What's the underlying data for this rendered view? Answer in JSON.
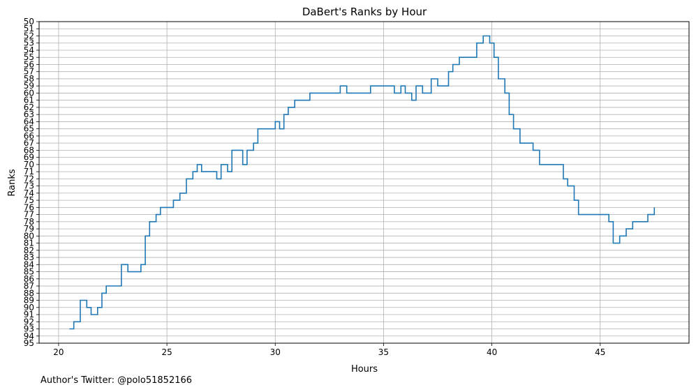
{
  "chart_data": {
    "type": "line",
    "title": "DaBert's Ranks by Hour",
    "xlabel": "Hours",
    "ylabel": "Ranks",
    "xlim": [
      19.1,
      49.1
    ],
    "ylim": [
      95,
      50
    ],
    "y_inverted": true,
    "step": true,
    "grid": true,
    "xticks": [
      20,
      25,
      30,
      35,
      40,
      45
    ],
    "yticks": [
      50,
      51,
      52,
      53,
      54,
      55,
      56,
      57,
      58,
      59,
      60,
      61,
      62,
      63,
      64,
      65,
      66,
      67,
      68,
      69,
      70,
      71,
      72,
      73,
      74,
      75,
      76,
      77,
      78,
      79,
      80,
      81,
      82,
      83,
      84,
      85,
      86,
      87,
      88,
      89,
      90,
      91,
      92,
      93,
      94,
      95
    ],
    "line_color": "#1f77b4",
    "series": [
      {
        "x": [
          20.5,
          20.7,
          21.0,
          21.3,
          21.5,
          21.8,
          22.0,
          22.2,
          22.5,
          22.9,
          23.2,
          23.5,
          23.8,
          24.0,
          24.2,
          24.5,
          24.7,
          25.0,
          25.3,
          25.6,
          25.9,
          26.2,
          26.4,
          26.6,
          27.0,
          27.3,
          27.5,
          27.8,
          28.0,
          28.5,
          28.7,
          29.0,
          29.2,
          29.6,
          30.0,
          30.2,
          30.4,
          30.6,
          30.9,
          31.1,
          31.6,
          32.0,
          33.0,
          33.3,
          34.0,
          34.4,
          35.0,
          35.5,
          35.8,
          36.0,
          36.3,
          36.5,
          36.8,
          37.0,
          37.2,
          37.5,
          37.8,
          38.0,
          38.2,
          38.5,
          39.0,
          39.3,
          39.6,
          39.9,
          40.1,
          40.3,
          40.6,
          40.8,
          41.0,
          41.3,
          41.5,
          41.9,
          42.2,
          43.0,
          43.3,
          43.5,
          43.8,
          44.0,
          44.8,
          45.4,
          45.6,
          45.9,
          46.2,
          46.5,
          47.2,
          47.5
        ],
        "y": [
          93,
          92,
          89,
          90,
          91,
          90,
          88,
          87,
          87,
          84,
          85,
          85,
          84,
          80,
          78,
          77,
          76,
          76,
          75,
          74,
          72,
          71,
          70,
          71,
          71,
          72,
          70,
          71,
          68,
          70,
          68,
          67,
          65,
          65,
          64,
          65,
          63,
          62,
          61,
          61,
          60,
          60,
          59,
          60,
          60,
          59,
          59,
          60,
          59,
          60,
          61,
          59,
          60,
          60,
          58,
          59,
          59,
          57,
          56,
          55,
          55,
          53,
          52,
          53,
          55,
          58,
          60,
          63,
          65,
          67,
          67,
          68,
          70,
          70,
          72,
          73,
          75,
          77,
          77,
          78,
          81,
          80,
          79,
          78,
          77,
          76
        ]
      }
    ]
  },
  "credit": "Author's Twitter: @polo51852166"
}
